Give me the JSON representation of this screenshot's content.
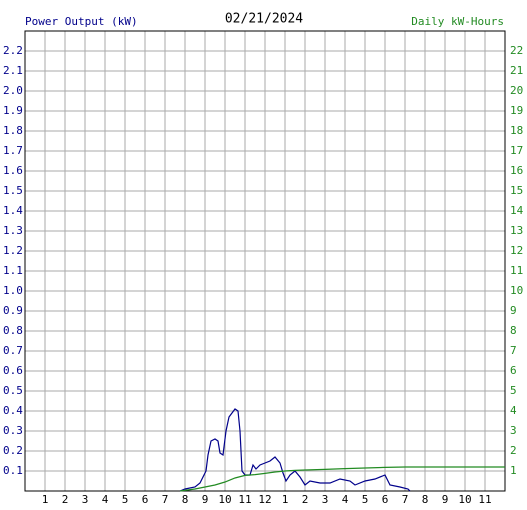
{
  "chart_data": {
    "type": "line",
    "title": "02/21/2024",
    "y_label": "Power Output (kW)",
    "y2_label": "Daily kW-Hours",
    "grid": true,
    "xlim": [
      0,
      24
    ],
    "xticks": [
      1,
      2,
      3,
      4,
      5,
      6,
      7,
      8,
      9,
      10,
      11,
      12,
      {
        "value": 13,
        "label": "1"
      },
      {
        "value": 14,
        "label": "2"
      },
      {
        "value": 15,
        "label": "3"
      },
      {
        "value": 16,
        "label": "4"
      },
      {
        "value": 17,
        "label": "5"
      },
      {
        "value": 18,
        "label": "6"
      },
      {
        "value": 19,
        "label": "7"
      },
      {
        "value": 20,
        "label": "8"
      },
      {
        "value": 21,
        "label": "9"
      },
      {
        "value": 22,
        "label": "10"
      },
      {
        "value": 23,
        "label": "11"
      }
    ],
    "ylim": [
      0,
      2.3
    ],
    "yticks": [
      0.1,
      0.2,
      0.3,
      0.4,
      0.5,
      0.6,
      0.7,
      0.8,
      0.9,
      {
        "value": 1,
        "label": "1.0"
      },
      1.1,
      1.2,
      1.3,
      1.4,
      1.5,
      1.6,
      1.7,
      1.8,
      1.9,
      {
        "value": 2,
        "label": "2.0"
      },
      2.1,
      2.2
    ],
    "y2lim": [
      0,
      23
    ],
    "y2ticks": [
      1,
      2,
      3,
      4,
      5,
      6,
      7,
      8,
      9,
      10,
      11,
      12,
      13,
      14,
      15,
      16,
      17,
      18,
      19,
      20,
      21,
      22
    ],
    "series": [
      {
        "name": "Power Output (kW)",
        "color": "#00008b",
        "x": [
          7.75,
          8.0,
          8.5,
          8.75,
          8.9,
          9.05,
          9.15,
          9.3,
          9.5,
          9.65,
          9.75,
          9.9,
          10.05,
          10.2,
          10.35,
          10.5,
          10.65,
          10.75,
          10.85,
          11.0,
          11.25,
          11.4,
          11.55,
          11.75,
          12.0,
          12.25,
          12.5,
          12.75,
          12.9,
          13.05,
          13.25,
          13.5,
          13.75,
          14.0,
          14.25,
          14.75,
          15.25,
          15.75,
          16.25,
          16.5,
          17.0,
          17.5,
          18.0,
          18.25,
          18.75,
          19.15,
          19.25
        ],
        "values": [
          0,
          0.01,
          0.02,
          0.04,
          0.07,
          0.1,
          0.18,
          0.25,
          0.26,
          0.25,
          0.19,
          0.18,
          0.3,
          0.37,
          0.39,
          0.41,
          0.4,
          0.3,
          0.1,
          0.08,
          0.08,
          0.13,
          0.11,
          0.13,
          0.14,
          0.15,
          0.17,
          0.14,
          0.09,
          0.05,
          0.08,
          0.1,
          0.07,
          0.03,
          0.05,
          0.04,
          0.04,
          0.06,
          0.05,
          0.03,
          0.05,
          0.06,
          0.08,
          0.03,
          0.02,
          0.01,
          0
        ]
      },
      {
        "name": "Daily kW-Hours",
        "color": "#228b22",
        "axis": "y2",
        "x": [
          7.75,
          8.5,
          9,
          9.5,
          10,
          10.5,
          11,
          11.5,
          12,
          12.5,
          13,
          13.5,
          14,
          15,
          16,
          17,
          18,
          19,
          24
        ],
        "values": [
          0,
          0.1,
          0.2,
          0.3,
          0.45,
          0.65,
          0.78,
          0.82,
          0.88,
          0.95,
          1.0,
          1.03,
          1.05,
          1.08,
          1.12,
          1.15,
          1.18,
          1.2,
          1.2
        ]
      }
    ]
  }
}
